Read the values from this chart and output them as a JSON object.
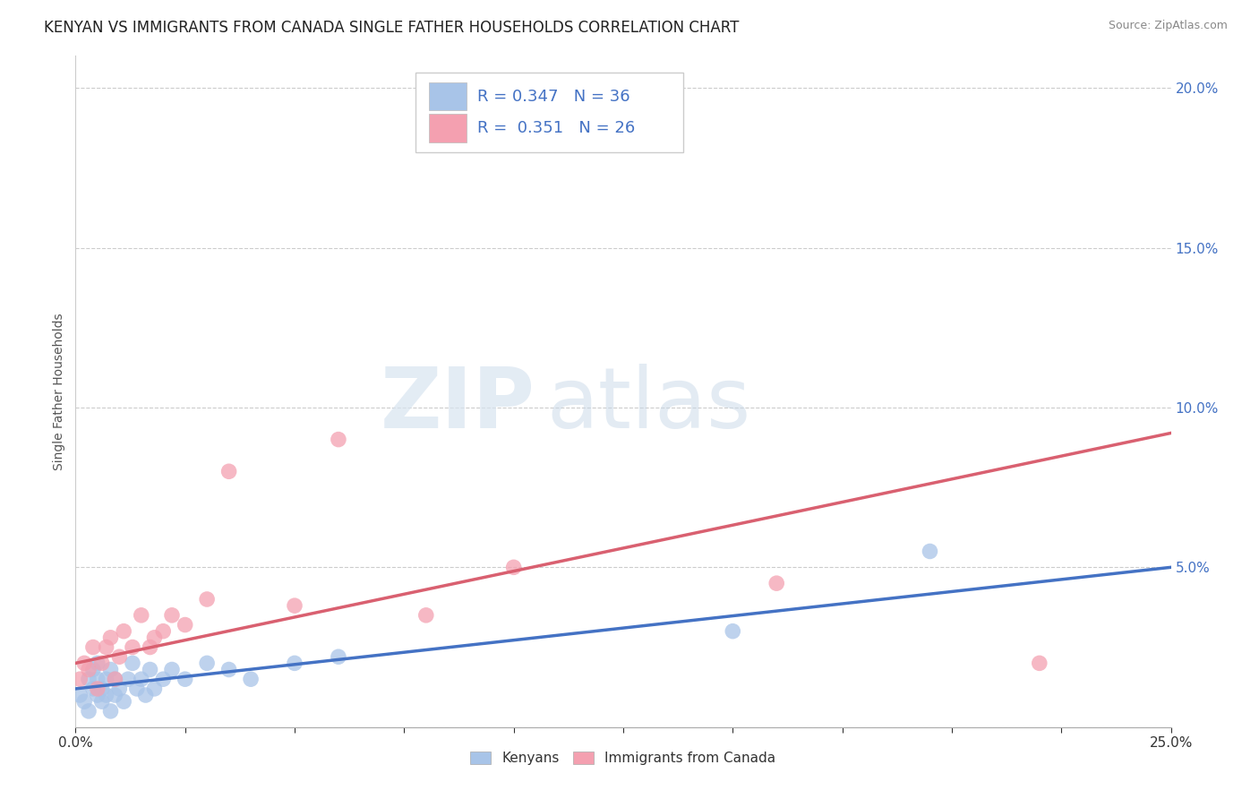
{
  "title": "KENYAN VS IMMIGRANTS FROM CANADA SINGLE FATHER HOUSEHOLDS CORRELATION CHART",
  "source": "Source: ZipAtlas.com",
  "ylabel": "Single Father Households",
  "xlim": [
    0.0,
    0.25
  ],
  "ylim": [
    0.0,
    0.21
  ],
  "blue_R": 0.347,
  "blue_N": 36,
  "pink_R": 0.351,
  "pink_N": 26,
  "blue_color": "#a8c4e8",
  "pink_color": "#f4a0b0",
  "blue_line_color": "#4472c4",
  "pink_line_color": "#d96070",
  "background_color": "#ffffff",
  "title_fontsize": 12,
  "axis_label_fontsize": 10,
  "tick_fontsize": 11,
  "legend_text_color": "#4472c4",
  "blue_scatter_x": [
    0.001,
    0.002,
    0.003,
    0.003,
    0.004,
    0.004,
    0.005,
    0.005,
    0.005,
    0.006,
    0.006,
    0.007,
    0.007,
    0.008,
    0.008,
    0.009,
    0.009,
    0.01,
    0.011,
    0.012,
    0.013,
    0.014,
    0.015,
    0.016,
    0.017,
    0.018,
    0.02,
    0.022,
    0.025,
    0.03,
    0.035,
    0.04,
    0.05,
    0.06,
    0.15,
    0.195
  ],
  "blue_scatter_y": [
    0.01,
    0.008,
    0.015,
    0.005,
    0.012,
    0.018,
    0.01,
    0.015,
    0.02,
    0.008,
    0.012,
    0.01,
    0.015,
    0.005,
    0.018,
    0.01,
    0.015,
    0.012,
    0.008,
    0.015,
    0.02,
    0.012,
    0.015,
    0.01,
    0.018,
    0.012,
    0.015,
    0.018,
    0.015,
    0.02,
    0.018,
    0.015,
    0.02,
    0.022,
    0.03,
    0.055
  ],
  "pink_scatter_x": [
    0.001,
    0.002,
    0.003,
    0.004,
    0.005,
    0.006,
    0.007,
    0.008,
    0.009,
    0.01,
    0.011,
    0.013,
    0.015,
    0.017,
    0.018,
    0.02,
    0.022,
    0.025,
    0.03,
    0.035,
    0.05,
    0.06,
    0.08,
    0.1,
    0.16,
    0.22
  ],
  "pink_scatter_y": [
    0.015,
    0.02,
    0.018,
    0.025,
    0.012,
    0.02,
    0.025,
    0.028,
    0.015,
    0.022,
    0.03,
    0.025,
    0.035,
    0.025,
    0.028,
    0.03,
    0.035,
    0.032,
    0.04,
    0.08,
    0.038,
    0.09,
    0.035,
    0.05,
    0.045,
    0.02
  ],
  "blue_trendline": [
    0.012,
    0.05
  ],
  "pink_trendline": [
    0.02,
    0.092
  ]
}
